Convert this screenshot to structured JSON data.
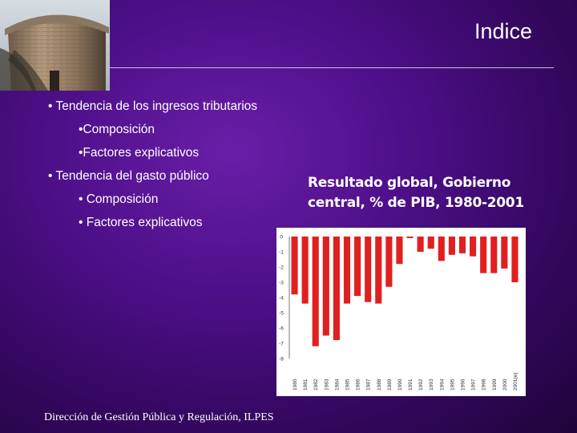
{
  "header": {
    "title": "Indice"
  },
  "bullets": [
    {
      "text": "• Tendencia de los ingresos tributarios",
      "level": 1
    },
    {
      "text": "•Composición",
      "level": 2
    },
    {
      "text": "•Factores explicativos",
      "level": 2
    },
    {
      "text": "• Tendencia del gasto público",
      "level": 1
    },
    {
      "text": "• Composición",
      "level": 2
    },
    {
      "text": "• Factores explicativos",
      "level": 2
    }
  ],
  "chart_title": "Resultado global, Gobierno central, % de PIB, 1980-2001",
  "footer": {
    "text": "Dirección de Gestión Pública y Regulación, ILPES"
  },
  "colors": {
    "bar": "#e02020",
    "background": "#4e108a"
  },
  "chart_data": {
    "type": "bar",
    "categories": [
      "1980",
      "1981",
      "1982",
      "1983",
      "1984",
      "1985",
      "1986",
      "1987",
      "1988",
      "1989",
      "1990",
      "1991",
      "1992",
      "1993",
      "1994",
      "1995",
      "1996",
      "1997",
      "1998",
      "1999",
      "2000",
      "2001(e)"
    ],
    "values": [
      -3.8,
      -4.4,
      -7.2,
      -6.5,
      -6.8,
      -4.4,
      -3.9,
      -4.3,
      -4.4,
      -3.3,
      -1.8,
      -0.1,
      -1.0,
      -0.8,
      -1.6,
      -1.2,
      -1.1,
      -1.3,
      -2.4,
      -2.4,
      -2.1,
      -3.0
    ],
    "yticks": [
      "0",
      "-1",
      "-2",
      "-3",
      "-4",
      "-5",
      "-6",
      "-7",
      "-8"
    ],
    "ylim": [
      -8,
      0
    ],
    "legend": "none",
    "grid": false
  }
}
